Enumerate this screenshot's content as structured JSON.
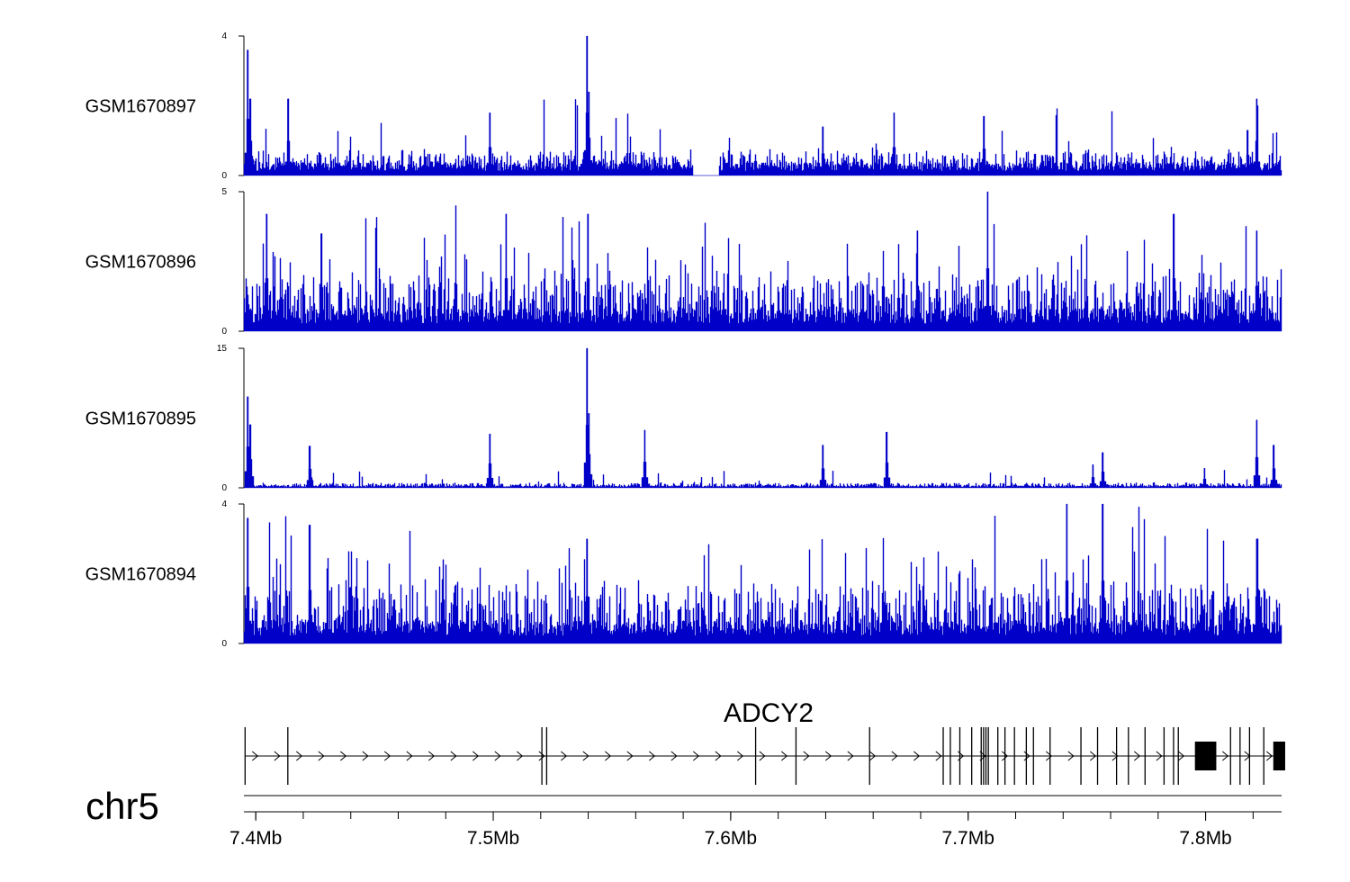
{
  "chart_data": {
    "type": "genome-browser-coverage",
    "chromosome": "chr5",
    "region_mb": [
      7.395,
      7.832
    ],
    "color": "#0000c8",
    "tracks": [
      {
        "name": "GSM1670897",
        "ymax": 4,
        "ytick_labels": [
          "4",
          "0"
        ],
        "base": 0.25,
        "noise": 0.42,
        "spike_prob": 0.035,
        "spike_max": 1.6,
        "seed": 11,
        "gaps": [
          [
            7.584,
            7.595
          ]
        ],
        "peaks": [
          {
            "pos": 7.3965,
            "h": 3.6
          },
          {
            "pos": 7.3975,
            "h": 2.2
          },
          {
            "pos": 7.4135,
            "h": 2.2
          },
          {
            "pos": 7.4985,
            "h": 1.8
          },
          {
            "pos": 7.5394,
            "h": 4.0
          },
          {
            "pos": 7.5402,
            "h": 2.4
          },
          {
            "pos": 7.6387,
            "h": 1.4
          },
          {
            "pos": 7.6688,
            "h": 1.8
          },
          {
            "pos": 7.7065,
            "h": 1.7
          },
          {
            "pos": 7.8215,
            "h": 2.2
          },
          {
            "pos": 7.8175,
            "h": 1.3
          }
        ]
      },
      {
        "name": "GSM1670896",
        "ymax": 5,
        "ytick_labels": [
          "5",
          "0"
        ],
        "base": 0.55,
        "noise": 1.35,
        "spike_prob": 0.09,
        "spike_max": 2.6,
        "seed": 23,
        "gaps": [],
        "peaks": [
          {
            "pos": 7.4045,
            "h": 4.2
          },
          {
            "pos": 7.5054,
            "h": 4.2
          },
          {
            "pos": 7.5398,
            "h": 4.2
          },
          {
            "pos": 7.6786,
            "h": 3.6
          },
          {
            "pos": 7.7082,
            "h": 5.0
          },
          {
            "pos": 7.7864,
            "h": 4.2
          },
          {
            "pos": 7.8215,
            "h": 3.6
          },
          {
            "pos": 7.4275,
            "h": 3.5
          }
        ]
      },
      {
        "name": "GSM1670895",
        "ymax": 15,
        "ytick_labels": [
          "15",
          "0"
        ],
        "base": 0.15,
        "noise": 0.35,
        "spike_prob": 0.03,
        "spike_max": 1.6,
        "seed": 37,
        "gaps": [],
        "peaks": [
          {
            "pos": 7.3965,
            "h": 9.8
          },
          {
            "pos": 7.3975,
            "h": 6.8
          },
          {
            "pos": 7.4225,
            "h": 4.5
          },
          {
            "pos": 7.4985,
            "h": 5.8
          },
          {
            "pos": 7.5394,
            "h": 15.0
          },
          {
            "pos": 7.5402,
            "h": 8.0
          },
          {
            "pos": 7.5638,
            "h": 6.2
          },
          {
            "pos": 7.6387,
            "h": 4.6
          },
          {
            "pos": 7.6655,
            "h": 6.0
          },
          {
            "pos": 7.7525,
            "h": 2.5
          },
          {
            "pos": 7.7565,
            "h": 3.8
          },
          {
            "pos": 7.7995,
            "h": 2.1
          },
          {
            "pos": 7.8215,
            "h": 7.3
          },
          {
            "pos": 7.8285,
            "h": 4.6
          }
        ]
      },
      {
        "name": "GSM1670894",
        "ymax": 4,
        "ytick_labels": [
          "4",
          "0"
        ],
        "base": 0.45,
        "noise": 1.2,
        "spike_prob": 0.1,
        "spike_max": 2.3,
        "seed": 51,
        "gaps": [],
        "peaks": [
          {
            "pos": 7.3965,
            "h": 3.6
          },
          {
            "pos": 7.4225,
            "h": 3.4
          },
          {
            "pos": 7.5394,
            "h": 3.0
          },
          {
            "pos": 7.7415,
            "h": 4.0
          },
          {
            "pos": 7.7565,
            "h": 4.0
          },
          {
            "pos": 7.8215,
            "h": 3.0
          }
        ]
      }
    ],
    "gene": {
      "name": "ADCY2",
      "strand": "+",
      "start": 7.3955,
      "end": 7.8335,
      "exons": [
        7.3955,
        7.4135,
        7.5205,
        7.5225,
        7.6105,
        7.6275,
        7.6585,
        7.6895,
        7.6925,
        7.6965,
        7.7015,
        7.7055,
        7.7065,
        7.7075,
        7.7085,
        7.7125,
        7.7155,
        7.7195,
        7.7245,
        7.7275,
        7.7345,
        7.7475,
        7.7545,
        7.7625,
        7.7675,
        7.7745,
        7.7825,
        7.7865,
        7.7885,
        7.8105,
        7.8145,
        7.8185,
        7.8245
      ],
      "blocks": [
        [
          7.7955,
          7.8045
        ],
        [
          7.8285,
          7.8335
        ]
      ]
    },
    "axis": {
      "ticks": [
        7.4,
        7.5,
        7.6,
        7.7,
        7.8
      ],
      "tick_labels": [
        "7.4Mb",
        "7.5Mb",
        "7.6Mb",
        "7.7Mb",
        "7.8Mb"
      ],
      "minor_step": 0.02
    }
  }
}
